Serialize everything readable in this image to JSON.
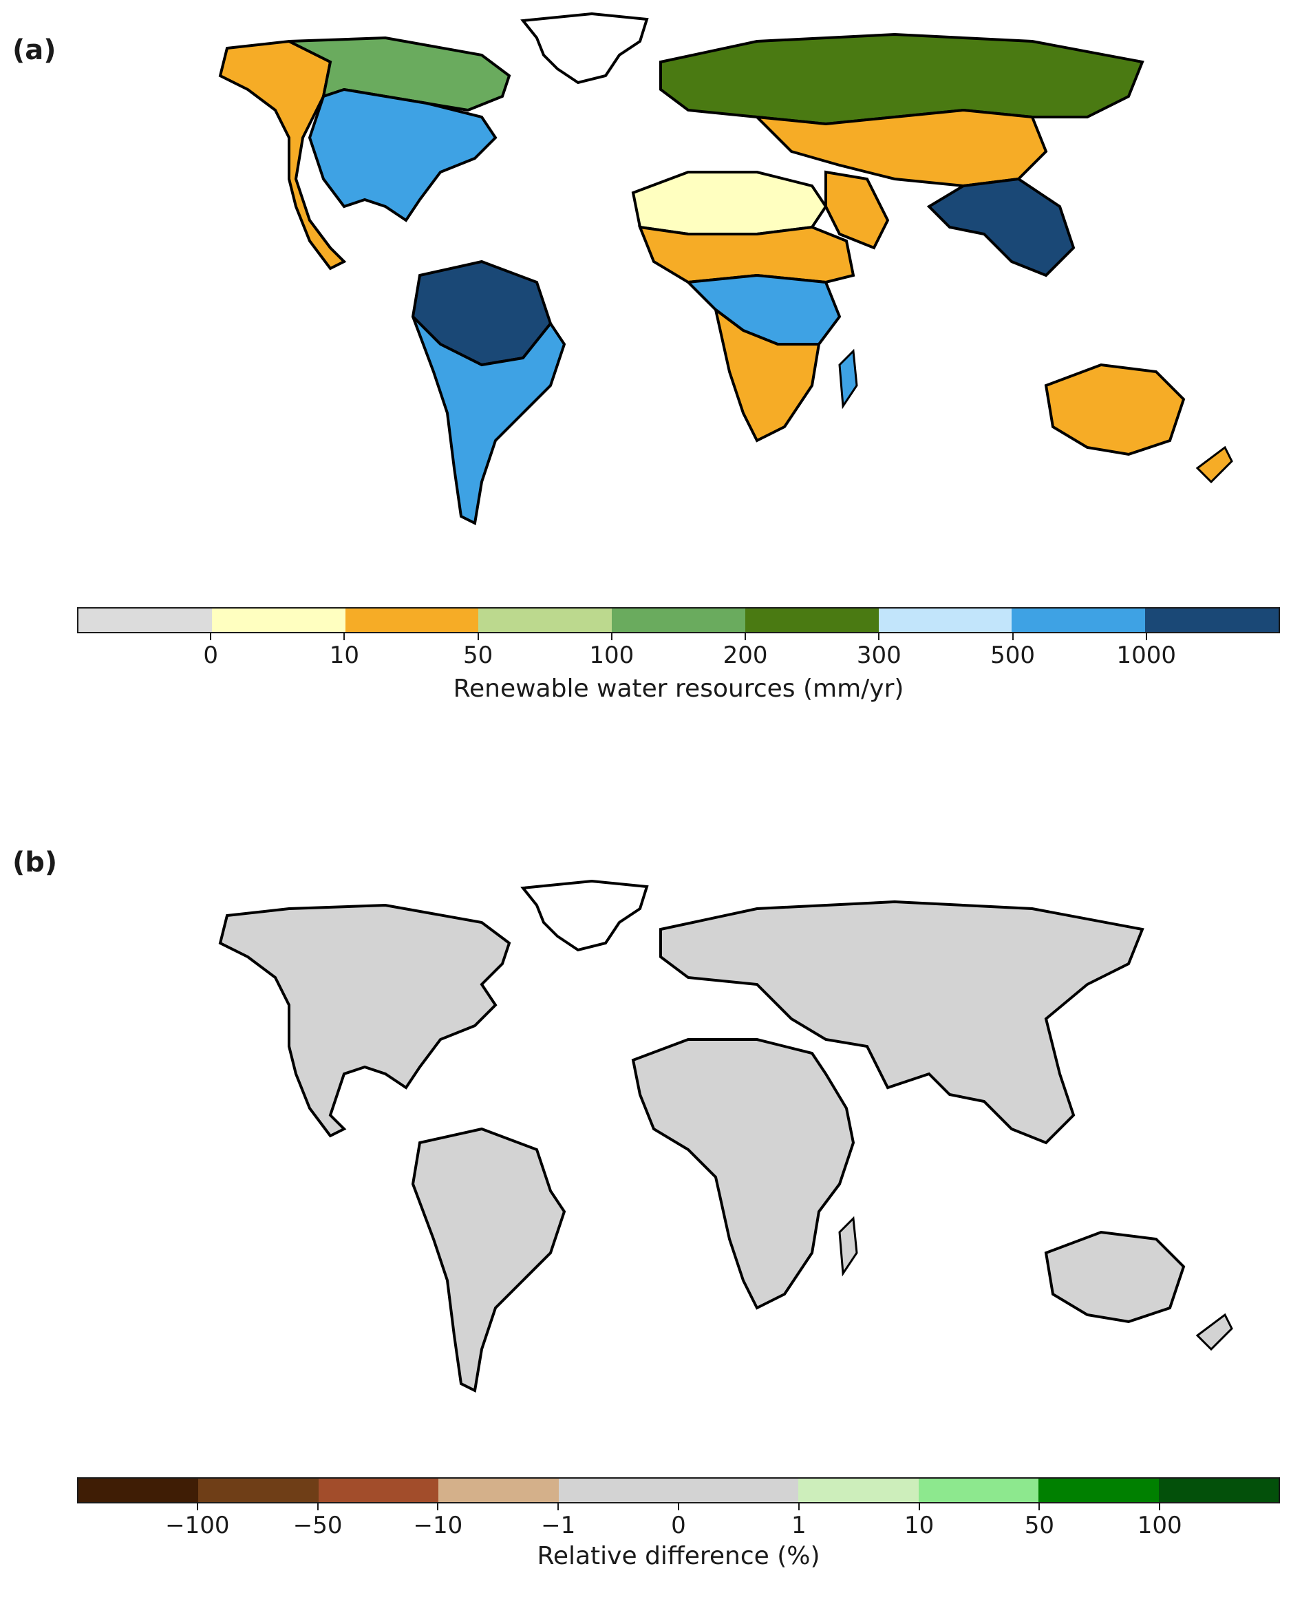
{
  "panels": [
    {
      "label": "(a)",
      "colorbar": {
        "title": "Renewable water resources (mm/yr)",
        "tick_labels": [
          "0",
          "10",
          "50",
          "100",
          "200",
          "300",
          "500",
          "1000"
        ],
        "colors": [
          "#dcdcdc",
          "#ffffc0",
          "#f6ac26",
          "#bcd98e",
          "#6aab5e",
          "#4a7a12",
          "#c2e5fb",
          "#3ea2e4",
          "#1a4876"
        ]
      },
      "map": {
        "land_default": "#6aab5e",
        "regions": [
          {
            "name": "north-america-west",
            "color": "#f6ac26"
          },
          {
            "name": "north-america-east",
            "color": "#3ea2e4"
          },
          {
            "name": "canada",
            "color": "#6aab5e"
          },
          {
            "name": "amazon",
            "color": "#1a4876"
          },
          {
            "name": "south-america",
            "color": "#3ea2e4"
          },
          {
            "name": "sahara",
            "color": "#ffffc0"
          },
          {
            "name": "sahel",
            "color": "#f6ac26"
          },
          {
            "name": "central-africa",
            "color": "#3ea2e4"
          },
          {
            "name": "southern-africa",
            "color": "#f6ac26"
          },
          {
            "name": "arabia",
            "color": "#f6ac26"
          },
          {
            "name": "siberia",
            "color": "#4a7a12"
          },
          {
            "name": "central-asia",
            "color": "#f6ac26"
          },
          {
            "name": "south-east-asia",
            "color": "#1a4876"
          },
          {
            "name": "australia",
            "color": "#f6ac26"
          },
          {
            "name": "greenland",
            "color": "#ffffff"
          }
        ]
      }
    },
    {
      "label": "(b)",
      "colorbar": {
        "title": "Relative difference (%)",
        "tick_labels": [
          "−100",
          "−50",
          "−10",
          "−1",
          "0",
          "1",
          "10",
          "50",
          "100"
        ],
        "colors": [
          "#3f1d05",
          "#6f3e17",
          "#a24d2b",
          "#d4b08a",
          "#d3d3d3",
          "#d3d3d3",
          "#cdeebb",
          "#8de88e",
          "#008000",
          "#03500a"
        ]
      },
      "map": {
        "land_default": "#d3d3d3",
        "regions": [
          {
            "name": "north-america",
            "color": "#d3d3d3"
          },
          {
            "name": "south-america",
            "color": "#d3d3d3"
          },
          {
            "name": "africa",
            "color": "#d3d3d3"
          },
          {
            "name": "eurasia",
            "color": "#d3d3d3"
          },
          {
            "name": "australia",
            "color": "#d3d3d3"
          },
          {
            "name": "greenland",
            "color": "#ffffff"
          }
        ]
      }
    }
  ]
}
